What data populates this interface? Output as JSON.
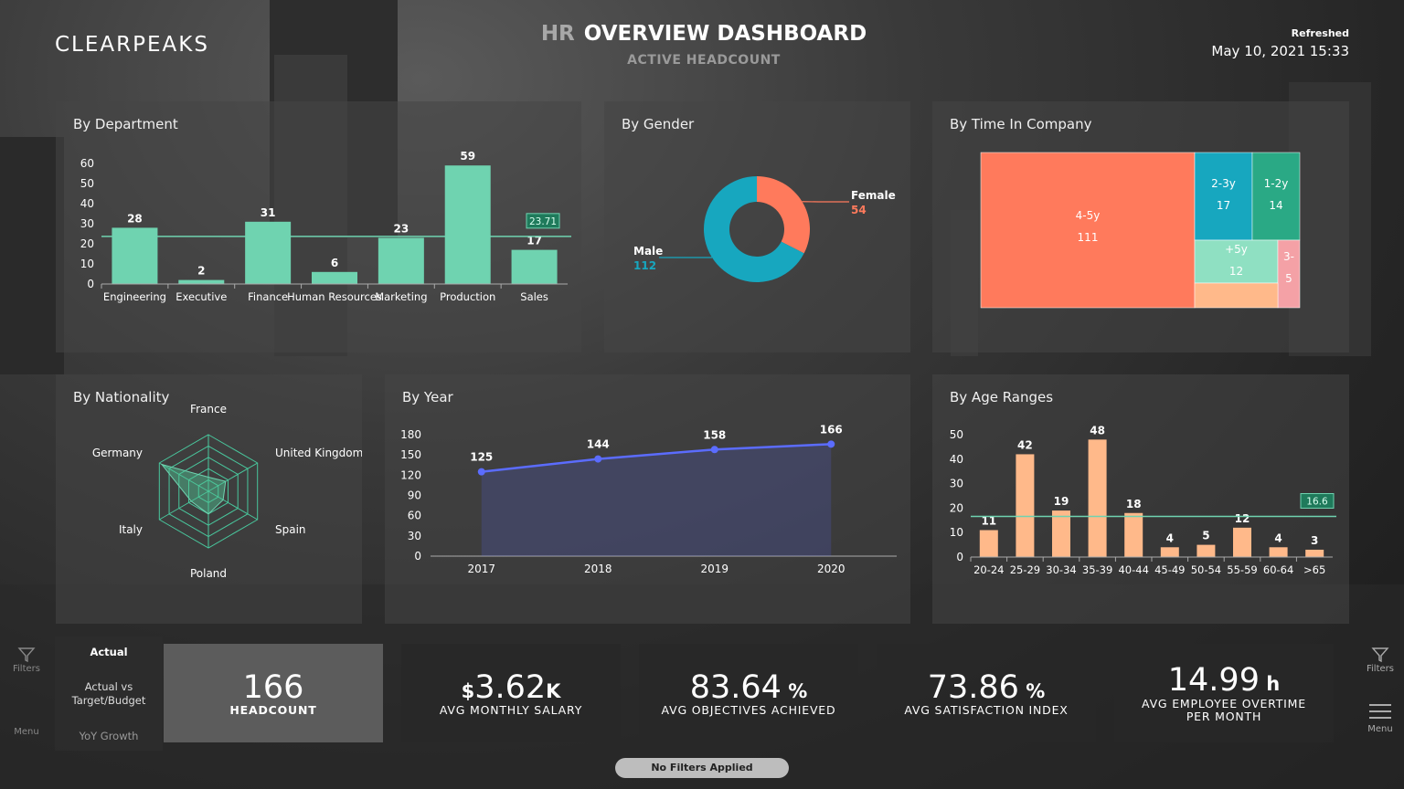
{
  "header": {
    "logo": "CLEARPEAKS",
    "title_prefix": "HR",
    "title": "OVERVIEW DASHBOARD",
    "subtitle": "ACTIVE HEADCOUNT",
    "refreshed_label": "Refreshed",
    "refreshed_value": "May 10, 2021 15:33"
  },
  "colors": {
    "mint": "#6fd3b0",
    "coral": "#ff7a5c",
    "teal": "#17a7bf",
    "peach": "#ffb98a",
    "pink": "#f4a1a6",
    "line_blue": "#5b6cff"
  },
  "panels": {
    "department": "By Department",
    "gender": "By Gender",
    "time_in_company": "By Time In Company",
    "nationality": "By Nationality",
    "year": "By Year",
    "age": "By Age Ranges"
  },
  "chart_data": [
    {
      "id": "department",
      "type": "bar",
      "categories": [
        "Engineering",
        "Executive",
        "Finance",
        "Human Resources",
        "Marketing",
        "Production",
        "Sales"
      ],
      "values": [
        28,
        2,
        31,
        6,
        23,
        59,
        17
      ],
      "ylim": [
        0,
        60
      ],
      "yticks": [
        0,
        10,
        20,
        30,
        40,
        50,
        60
      ],
      "average_line": 23.71,
      "average_label": "23.71"
    },
    {
      "id": "gender",
      "type": "pie",
      "donut": true,
      "labels": [
        "Female",
        "Male"
      ],
      "values": [
        54,
        112
      ]
    },
    {
      "id": "time_in_company",
      "type": "treemap",
      "labels": [
        "4-5y",
        "2-3y",
        "1-2y",
        "+5y",
        "3-",
        ""
      ],
      "values": [
        111,
        17,
        14,
        12,
        5,
        null
      ]
    },
    {
      "id": "nationality",
      "type": "radar",
      "categories": [
        "France",
        "United Kingdom",
        "Spain",
        "Poland",
        "Italy",
        "Germany"
      ]
    },
    {
      "id": "year",
      "type": "line",
      "x": [
        "2017",
        "2018",
        "2019",
        "2020"
      ],
      "values": [
        125,
        144,
        158,
        166
      ],
      "ylim": [
        0,
        180
      ],
      "yticks": [
        0,
        30,
        60,
        90,
        120,
        150,
        180
      ]
    },
    {
      "id": "age",
      "type": "bar",
      "categories": [
        "20-24",
        "25-29",
        "30-34",
        "35-39",
        "40-44",
        "45-49",
        "50-54",
        "55-59",
        "60-64",
        ">65"
      ],
      "values": [
        11,
        42,
        19,
        48,
        18,
        4,
        5,
        12,
        4,
        3
      ],
      "ylim": [
        0,
        50
      ],
      "yticks": [
        0,
        10,
        20,
        30,
        40,
        50
      ],
      "average_line": 16.6,
      "average_label": "16.6"
    }
  ],
  "kpi_tabs": {
    "actual": "Actual",
    "target": "Actual vs Target/Budget",
    "yoy": "YoY Growth"
  },
  "kpis": [
    {
      "prefix": "",
      "value": "166",
      "suffix": "",
      "label": "HEADCOUNT",
      "label2": ""
    },
    {
      "prefix": "$",
      "value": "3.62",
      "suffix": "K",
      "label": "AVG MONTHLY SALARY",
      "label2": ""
    },
    {
      "prefix": "",
      "value": "83.64",
      "suffix": " %",
      "label": "AVG OBJECTIVES ACHIEVED",
      "label2": ""
    },
    {
      "prefix": "",
      "value": "73.86",
      "suffix": " %",
      "label": "AVG SATISFACTION INDEX",
      "label2": ""
    },
    {
      "prefix": "",
      "value": "14.99",
      "suffix": " h",
      "label": "AVG EMPLOYEE OVERTIME",
      "label2": "PER MONTH"
    }
  ],
  "side": {
    "filters_left": "Filters",
    "menu_left": "Menu",
    "filters_right": "Filters",
    "menu_right": "Menu"
  },
  "status": "No Filters Applied"
}
